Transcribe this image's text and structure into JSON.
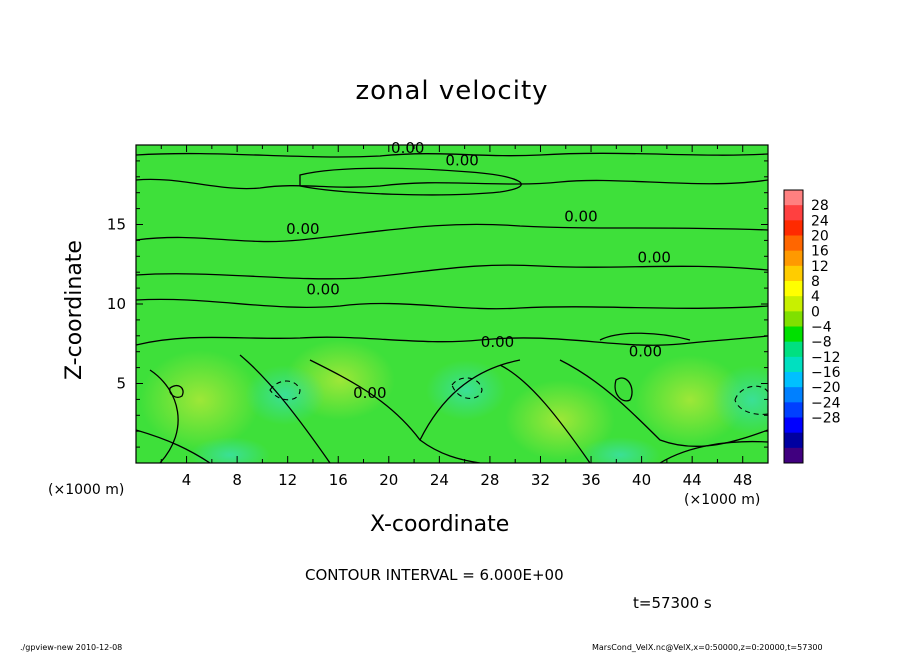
{
  "header": {
    "title": "zonal velocity"
  },
  "axes": {
    "xlabel": "X-coordinate",
    "ylabel": "Z-coordinate",
    "x_unit_left": "(×1000 m)",
    "x_unit_right": "(×1000 m)"
  },
  "footer": {
    "contour_interval": "CONTOUR INTERVAL = 6.000E+00",
    "time": "t=57300 s",
    "left": "./gpview-new  2010-12-08",
    "right": "MarsCond_VelX.nc@VelX,x=0:50000,z=0:20000,t=57300"
  },
  "chart_data": {
    "type": "heatmap",
    "title": "zonal velocity",
    "xlabel": "X-coordinate",
    "ylabel": "Z-coordinate",
    "x_unit": "(×1000 m)",
    "xlim": [
      0,
      50
    ],
    "ylim": [
      0,
      20
    ],
    "x_ticks": [
      4,
      8,
      12,
      16,
      20,
      24,
      28,
      32,
      36,
      40,
      44,
      48
    ],
    "y_ticks": [
      5,
      10,
      15
    ],
    "contour_interval": 6.0,
    "time": "t=57300 s",
    "contour_labels": [
      {
        "x": 21.5,
        "z": 19.5,
        "text": "0.00"
      },
      {
        "x": 25.8,
        "z": 18.7,
        "text": "0.00"
      },
      {
        "x": 13.2,
        "z": 14.4,
        "text": "0.00"
      },
      {
        "x": 35.2,
        "z": 15.2,
        "text": "0.00"
      },
      {
        "x": 41.0,
        "z": 12.6,
        "text": "0.00"
      },
      {
        "x": 14.8,
        "z": 10.6,
        "text": "0.00"
      },
      {
        "x": 28.6,
        "z": 7.3,
        "text": "0.00"
      },
      {
        "x": 40.3,
        "z": 6.7,
        "text": "0.00"
      },
      {
        "x": 18.5,
        "z": 4.1,
        "text": "0.00"
      }
    ],
    "colorbar": {
      "ticks": [
        28,
        24,
        20,
        16,
        12,
        8,
        4,
        0,
        -4,
        -8,
        -12,
        -16,
        -20,
        -24,
        -28
      ],
      "colors": [
        "#ff8080",
        "#ff4040",
        "#ff2a00",
        "#ff6600",
        "#ff9900",
        "#ffcc00",
        "#ffff00",
        "#c8f000",
        "#80e000",
        "#00e000",
        "#00e080",
        "#00e0c0",
        "#00c0ff",
        "#0080ff",
        "#0040ff",
        "#0000ff",
        "#0000a0",
        "#40007f"
      ]
    }
  }
}
